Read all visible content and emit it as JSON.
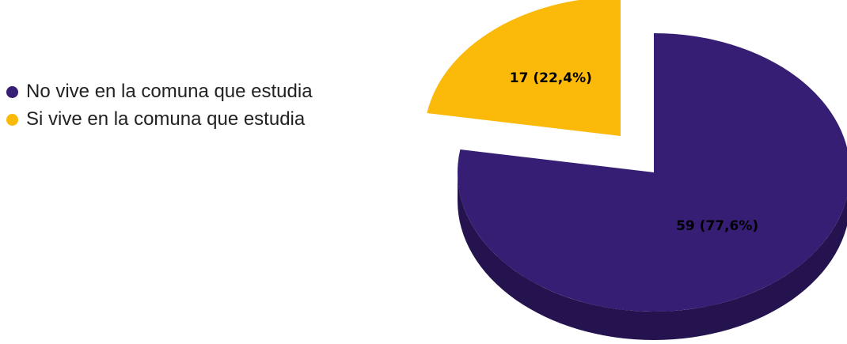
{
  "chart_data": {
    "type": "pie",
    "style": "3d-exploded",
    "legend_position": "left",
    "title": "",
    "series": [
      {
        "name": "No vive en la comuna que estudia",
        "value": 59,
        "percent": 77.6,
        "data_label": "59 (77,6%)",
        "color": "#351e73",
        "side_color": "#24134f"
      },
      {
        "name": "Si vive en la comuna que estudia",
        "value": 17,
        "percent": 22.4,
        "data_label": "17 (22,4%)",
        "color": "#fbb909",
        "side_color": "#b48506"
      }
    ]
  }
}
